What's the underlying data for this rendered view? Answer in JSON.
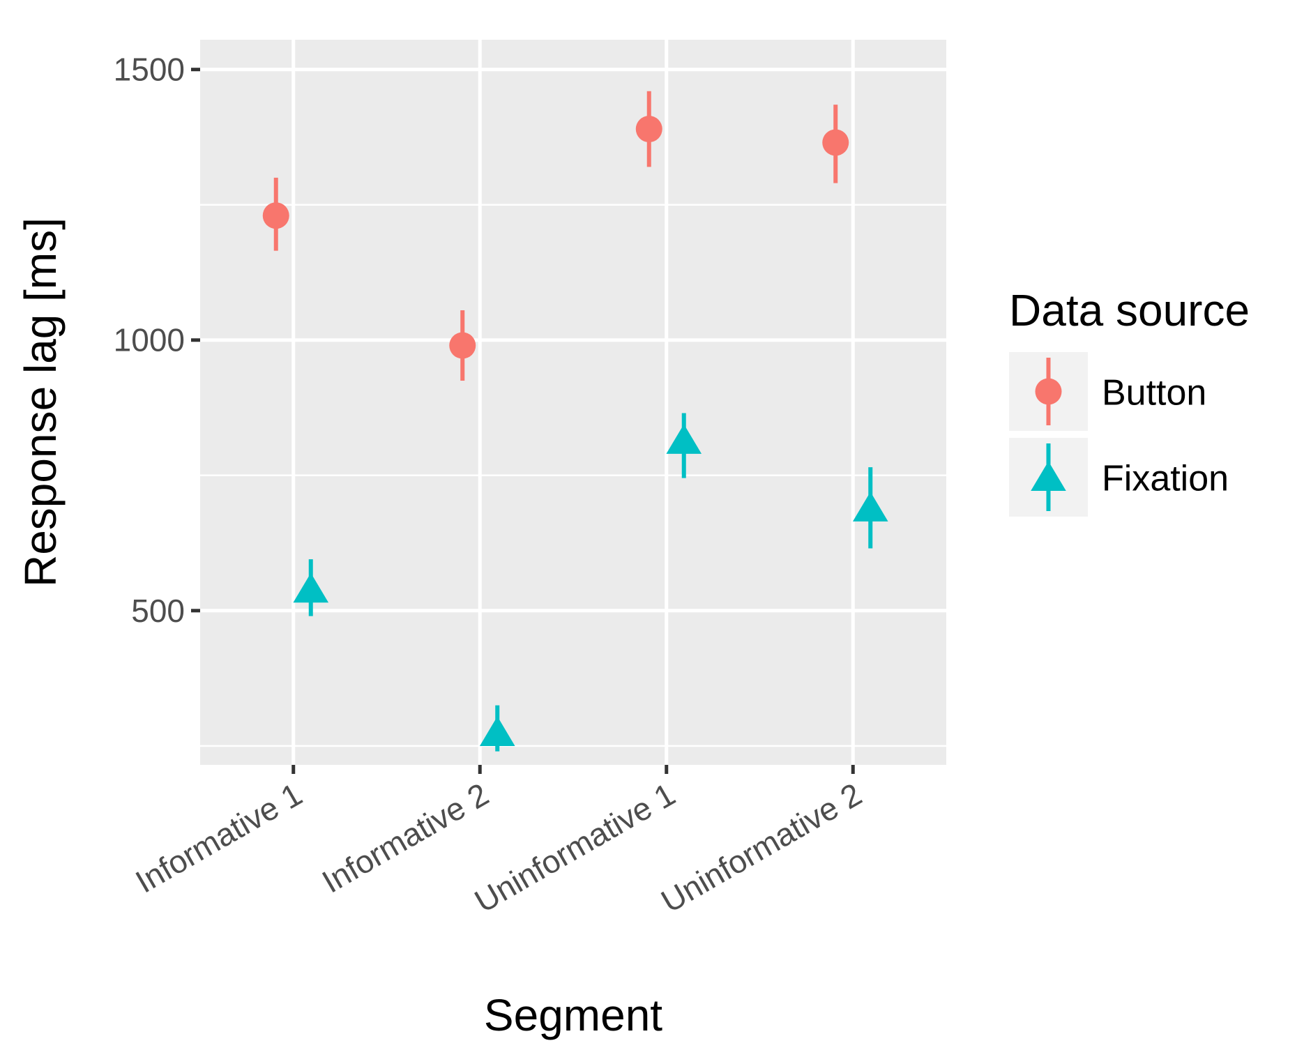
{
  "chart_data": {
    "type": "scatter",
    "title": "",
    "xlabel": "Segment",
    "ylabel": "Response lag [ms]",
    "categories": [
      "Informative 1",
      "Informative 2",
      "Uninformative 1",
      "Uninformative 2"
    ],
    "y_ticks": [
      500,
      1000,
      1500
    ],
    "y_tick_labels": [
      "500",
      "1000",
      "1500"
    ],
    "ylim": [
      215,
      1555
    ],
    "grid": true,
    "legend": {
      "title": "Data source",
      "position": "right"
    },
    "series": [
      {
        "name": "Button",
        "color": "#F8766D",
        "shape": "circle",
        "values": [
          1230,
          990,
          1390,
          1365
        ],
        "lower": [
          1165,
          925,
          1320,
          1290
        ],
        "upper": [
          1300,
          1055,
          1460,
          1435
        ]
      },
      {
        "name": "Fixation",
        "color": "#00BFC4",
        "shape": "triangle",
        "values": [
          540,
          275,
          815,
          690
        ],
        "lower": [
          490,
          240,
          745,
          615
        ],
        "upper": [
          595,
          325,
          865,
          765
        ]
      }
    ]
  }
}
